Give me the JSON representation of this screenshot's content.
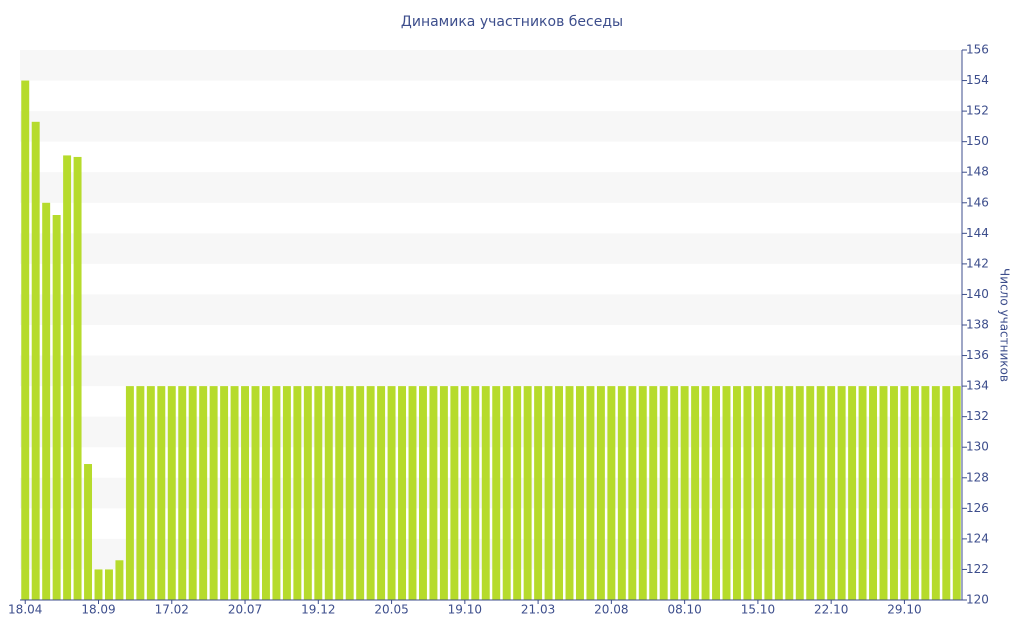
{
  "chart_data": {
    "type": "bar",
    "title": "Динамика участников беседы",
    "y_axis_label": "Число участников",
    "categories": [
      "18.04",
      null,
      null,
      null,
      null,
      null,
      null,
      "18.09",
      null,
      null,
      null,
      null,
      null,
      null,
      "17.02",
      null,
      null,
      null,
      null,
      null,
      null,
      "20.07",
      null,
      null,
      null,
      null,
      null,
      null,
      "19.12",
      null,
      null,
      null,
      null,
      null,
      null,
      "20.05",
      null,
      null,
      null,
      null,
      null,
      null,
      "19.10",
      null,
      null,
      null,
      null,
      null,
      null,
      "21.03",
      null,
      null,
      null,
      null,
      null,
      null,
      "20.08",
      null,
      null,
      null,
      null,
      null,
      null,
      "08.10",
      null,
      null,
      null,
      null,
      null,
      null,
      "15.10",
      null,
      null,
      null,
      null,
      null,
      null,
      "22.10",
      null,
      null,
      null,
      null,
      null,
      null,
      "29.10",
      null,
      null,
      null,
      null,
      null
    ],
    "values": [
      154,
      151.3,
      146,
      145.2,
      149.1,
      149,
      128.9,
      122,
      122,
      122.6,
      134,
      134,
      134,
      134,
      134,
      134,
      134,
      134,
      134,
      134,
      134,
      134,
      134,
      134,
      134,
      134,
      134,
      134,
      134,
      134,
      134,
      134,
      134,
      134,
      134,
      134,
      134,
      134,
      134,
      134,
      134,
      134,
      134,
      134,
      134,
      134,
      134,
      134,
      134,
      134,
      134,
      134,
      134,
      134,
      134,
      134,
      134,
      134,
      134,
      134,
      134,
      134,
      134,
      134,
      134,
      134,
      134,
      134,
      134,
      134,
      134,
      134,
      134,
      134,
      134,
      134,
      134,
      134,
      134,
      134,
      134,
      134,
      134,
      134,
      134,
      134,
      134,
      134,
      134,
      134
    ],
    "color": "#b6db2c",
    "ylim": [
      120,
      156
    ],
    "yticks": [
      120,
      122,
      124,
      126,
      128,
      130,
      132,
      134,
      136,
      138,
      140,
      142,
      144,
      146,
      148,
      150,
      152,
      154,
      156
    ],
    "grid": true,
    "y_axis_side": "right"
  }
}
